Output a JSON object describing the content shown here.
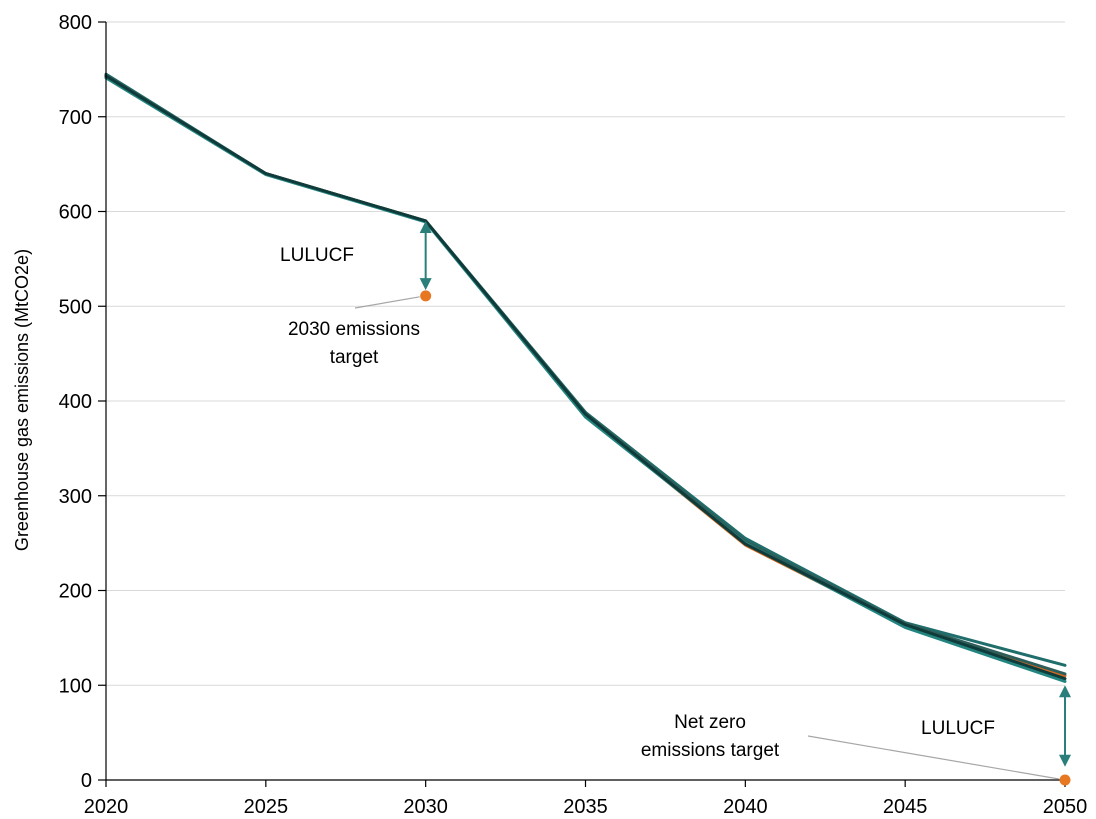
{
  "chart_data": {
    "type": "line",
    "title": "",
    "xlabel": "",
    "ylabel": "Greenhouse gas emissions (MtCO2e)",
    "x": [
      2020,
      2025,
      2030,
      2035,
      2040,
      2045,
      2050
    ],
    "x_ticks": [
      "2020",
      "2025",
      "2030",
      "2035",
      "2040",
      "2045",
      "2050"
    ],
    "y_ticks": [
      "0",
      "100",
      "200",
      "300",
      "400",
      "500",
      "600",
      "700",
      "800"
    ],
    "xlim": [
      2020,
      2050
    ],
    "ylim": [
      0,
      800
    ],
    "grid": "horizontal",
    "series": [
      {
        "values": [
          745,
          640,
          590,
          388,
          255,
          166,
          121
        ],
        "color": "#1f6e6b"
      },
      {
        "values": [
          742,
          640,
          590,
          385,
          248,
          163,
          110
        ],
        "color": "#d2691e"
      },
      {
        "values": [
          744,
          640,
          590,
          387,
          252,
          165,
          112
        ],
        "color": "#2e5e5a"
      },
      {
        "values": [
          741,
          639,
          589,
          383,
          250,
          161,
          104
        ],
        "color": "#238580"
      },
      {
        "values": [
          743,
          640,
          590,
          386,
          249,
          164,
          107
        ],
        "color": "#0f3b3a"
      }
    ],
    "points": [
      {
        "x": 2030,
        "y": 511,
        "color": "#e87722"
      },
      {
        "x": 2050,
        "y": 0,
        "color": "#e87722"
      }
    ],
    "arrows": [
      {
        "x": 2030,
        "y_from": 590,
        "y_to": 517,
        "color": "#2a7f7a"
      },
      {
        "x": 2050,
        "y_from": 100,
        "y_to": 14,
        "color": "#2a7f7a"
      }
    ],
    "annotations": {
      "lulucf_2030": "LULUCF",
      "target_2030_line1": "2030 emissions",
      "target_2030_line2": "target",
      "lulucf_2050": "LULUCF",
      "target_2050_line1": "Net zero",
      "target_2050_line2": "emissions target"
    }
  }
}
